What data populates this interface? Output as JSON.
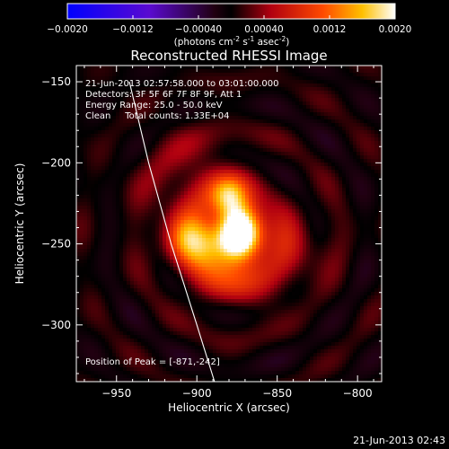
{
  "colorbar": {
    "ticks": [
      "-0.0020",
      "-0.0012",
      "-0.00040",
      "0.00040",
      "0.0012",
      "0.0020"
    ],
    "label": "(photons cm",
    "label_sup1": "-2",
    "label_mid": " s",
    "label_sup2": "-1",
    "label_end": " asec",
    "label_sup3": "-2",
    "label_close": ")"
  },
  "chart_data": {
    "type": "heatmap",
    "title": "Reconstructed RHESSI Image",
    "xlabel": "Heliocentric X (arcsec)",
    "ylabel": "Heliocentric Y (arcsec)",
    "xlim": [
      -975,
      -785
    ],
    "ylim": [
      -335,
      -140
    ],
    "x_ticks": [
      -950,
      -900,
      -850,
      -800
    ],
    "y_ticks": [
      -150,
      -200,
      -250,
      -300
    ],
    "x_tick_labels": [
      "−950",
      "−900",
      "−850",
      "−800"
    ],
    "y_tick_labels": [
      "−150",
      "−200",
      "−250",
      "−300"
    ],
    "colorbar_range": [
      -0.002,
      0.002
    ],
    "peak_position": [
      -871,
      -242
    ],
    "sources": [
      {
        "x": -872,
        "y": -240,
        "amp": 0.00185,
        "sx": 9,
        "sy": 12
      },
      {
        "x": -880,
        "y": -222,
        "amp": 0.0011,
        "sx": 8,
        "sy": 9
      },
      {
        "x": -903,
        "y": -248,
        "amp": 0.00095,
        "sx": 12,
        "sy": 11
      },
      {
        "x": -887,
        "y": -252,
        "amp": 0.0009,
        "sx": 14,
        "sy": 13
      },
      {
        "x": -875,
        "y": -268,
        "amp": 0.0006,
        "sx": 20,
        "sy": 16
      },
      {
        "x": -900,
        "y": -215,
        "amp": 0.0005,
        "sx": 22,
        "sy": 22
      },
      {
        "x": -845,
        "y": -250,
        "amp": 0.00045,
        "sx": 18,
        "sy": 16
      }
    ],
    "limb_curve": [
      [
        -942,
        -150
      ],
      [
        -930,
        -200
      ],
      [
        -916,
        -250
      ],
      [
        -900,
        -300
      ],
      [
        -889,
        -335
      ]
    ],
    "annotations": [
      "21-Jun-2013 02:57:58.000 to 03:01:00.000",
      "Detectors: 3F 5F 6F 7F 8F 9F, Att 1",
      "Energy Range: 25.0 - 50.0 keV",
      "Clean     Total counts: 1.33E+04"
    ],
    "peak_label": "Position of Peak = [-871,-242]"
  },
  "footer": {
    "timestamp": "21-Jun-2013 02:43"
  }
}
